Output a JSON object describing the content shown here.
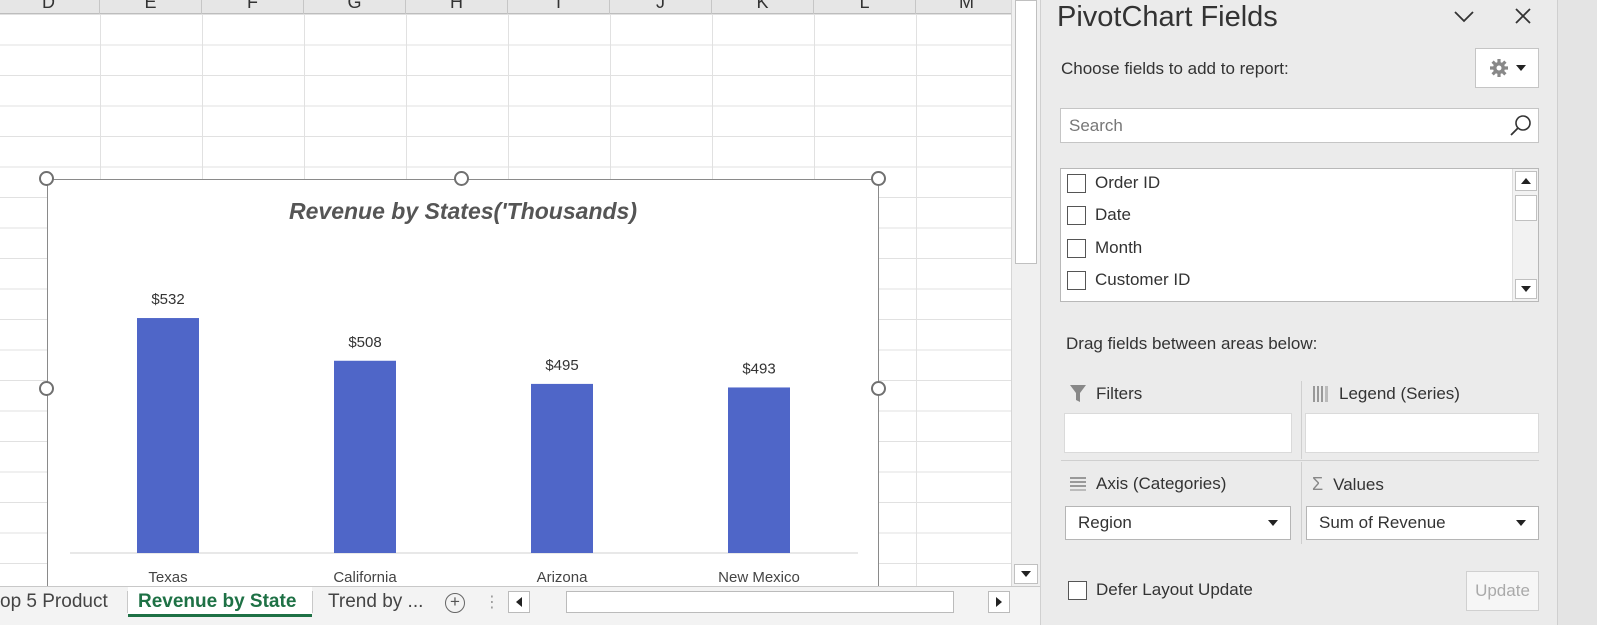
{
  "columns": [
    "D",
    "E",
    "F",
    "G",
    "H",
    "I",
    "J",
    "K",
    "L",
    "M"
  ],
  "chart": {
    "title": "Revenue by States('Thousands)"
  },
  "chart_data": {
    "type": "bar",
    "title": "Revenue by States('Thousands)",
    "categories": [
      "Texas",
      "California",
      "Arizona",
      "New Mexico"
    ],
    "values": [
      532,
      508,
      495,
      493
    ],
    "data_labels": [
      "$532",
      "$508",
      "$495",
      "$493"
    ],
    "xlabel": "",
    "ylabel": "",
    "ylim": [
      400,
      550
    ],
    "grid": false,
    "legend": "none",
    "bar_color": "#4f66c8"
  },
  "sheet_tabs": {
    "items": [
      "op 5 Product",
      "Revenue by State",
      "Trend by ..."
    ],
    "active_index": 1,
    "add_symbol": "+",
    "dots": "⋮"
  },
  "panel": {
    "title": "PivotChart Fields",
    "choose_label": "Choose fields to add to report:",
    "search_placeholder": "Search",
    "fields": [
      "Order ID",
      "Date",
      "Month",
      "Customer ID"
    ],
    "drag_label": "Drag fields between areas below:",
    "areas": {
      "filters": "Filters",
      "legend": "Legend (Series)",
      "axis": "Axis (Categories)",
      "values": "Values"
    },
    "axis_value": "Region",
    "values_value": "Sum of Revenue",
    "defer_label": "Defer Layout Update",
    "update_label": "Update"
  },
  "colors": {
    "accent": "#1e7145",
    "bar": "#4f66c8"
  }
}
